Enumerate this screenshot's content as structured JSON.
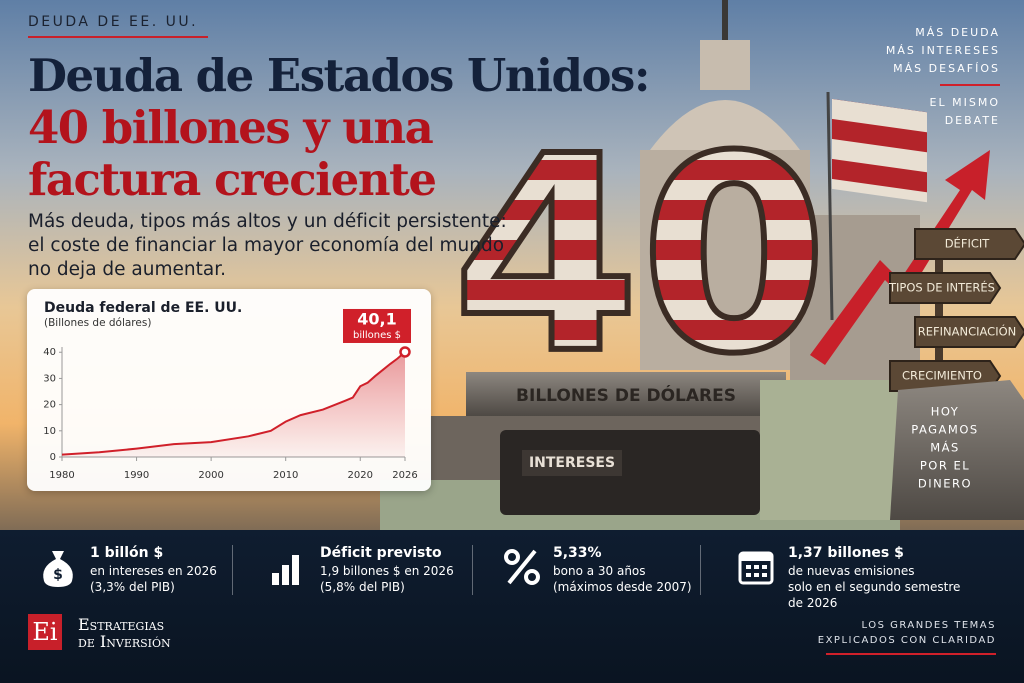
{
  "kicker": "DEUDA DE EE. UU.",
  "title_lines": [
    "Deuda de Estados Unidos:",
    "40 billones y una",
    "factura creciente"
  ],
  "subtitle_lines": [
    "Más deuda, tipos más altos y un déficit persistente:",
    "el coste de financiar la mayor economía del mundo",
    "no deja de aumentar."
  ],
  "side_top": [
    "MÁS DEUDA",
    "MÁS INTERESES",
    "MÁS DESAFÍOS"
  ],
  "side_debate": [
    "EL MISMO",
    "DEBATE"
  ],
  "scene": {
    "big_number": "40",
    "pedestal": "BILLONES DE DÓLARES",
    "briefcase": "INTERESES",
    "signs": [
      "DÉFICIT",
      "TIPOS DE INTERÉS",
      "REFINANCIACIÓN",
      "CRECIMIENTO"
    ],
    "stone": [
      "HOY",
      "PAGAMOS",
      "MÁS",
      "POR EL",
      "DINERO"
    ]
  },
  "chart_data": {
    "type": "line",
    "title": "Deuda federal de EE. UU.",
    "subtitle": "(Billones de dólares)",
    "x": [
      1980,
      1985,
      1990,
      1995,
      2000,
      2005,
      2008,
      2010,
      2012,
      2015,
      2018,
      2019,
      2020,
      2021,
      2022,
      2023,
      2024,
      2025,
      2026
    ],
    "values": [
      0.9,
      1.8,
      3.2,
      4.9,
      5.7,
      7.9,
      10,
      13.5,
      16,
      18.1,
      21.5,
      22.7,
      27,
      28.4,
      30.9,
      33.2,
      35.5,
      37.6,
      40.1
    ],
    "color": "#d0202a",
    "xlim": [
      1980,
      2026
    ],
    "xticks": [
      1980,
      1990,
      2000,
      2010,
      2020,
      2026
    ],
    "ylim": [
      0,
      42
    ],
    "yticks": [
      0,
      10,
      20,
      30,
      40
    ],
    "annotation": {
      "label": "40,1",
      "text": "billones $"
    }
  },
  "stats": [
    {
      "title": "1 billón $",
      "lines": [
        "en intereses en 2026",
        "(3,3% del PIB)"
      ]
    },
    {
      "title": "Déficit previsto",
      "lines": [
        "1,9 billones $ en 2026",
        "(5,8% del PIB)"
      ]
    },
    {
      "title": "5,33%",
      "lines": [
        "bono a 30 años",
        "(máximos desde 2007)"
      ]
    },
    {
      "title": "1,37 billones $",
      "lines": [
        "de nuevas emisiones",
        "solo en el segundo semestre",
        "de 2026"
      ]
    }
  ],
  "logo": {
    "mark": "Ei",
    "line1": "Estrategias",
    "line2": "de Inversión"
  },
  "footer": [
    "LOS GRANDES TEMAS",
    "EXPLICADOS CON CLARIDAD"
  ]
}
